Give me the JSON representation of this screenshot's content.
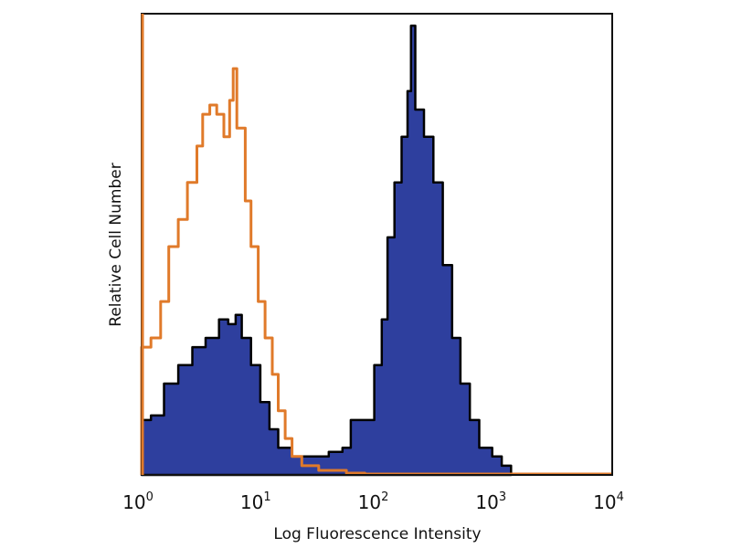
{
  "chart_data": {
    "type": "area",
    "title": "",
    "xlabel": "Log Fluorescence Intensity",
    "ylabel": "Relative Cell Number",
    "xscale": "log",
    "xlim": [
      1,
      10000
    ],
    "ylim": [
      0,
      100
    ],
    "grid": false,
    "legend": "none",
    "xticks": [
      {
        "base": "10",
        "exp": "0",
        "value": 1
      },
      {
        "base": "10",
        "exp": "1",
        "value": 10
      },
      {
        "base": "10",
        "exp": "2",
        "value": 100
      },
      {
        "base": "10",
        "exp": "3",
        "value": 1000
      },
      {
        "base": "10",
        "exp": "4",
        "value": 10000
      }
    ],
    "series": [
      {
        "style": "outline",
        "color": "#e07a2a",
        "x": [
          1,
          1.2,
          1.45,
          1.7,
          2.05,
          2.45,
          2.95,
          3.3,
          3.8,
          4.35,
          5.0,
          5.6,
          6.0,
          6.45,
          7.6,
          8.5,
          9.8,
          11.2,
          12.9,
          14.5,
          16.6,
          19,
          23,
          32,
          55,
          79
        ],
        "y": [
          27.7,
          29.7,
          37.6,
          49.5,
          55.4,
          63.4,
          71.3,
          78.2,
          80.2,
          78.2,
          73.3,
          81.2,
          88.1,
          75.2,
          59.4,
          49.5,
          37.6,
          29.7,
          21.8,
          13.9,
          7.9,
          4.0,
          2.0,
          1.0,
          0.4,
          0
        ]
      },
      {
        "style": "filled",
        "color": "#2e3f9e",
        "edge_color": "#000000",
        "x": [
          1,
          1.2,
          1.55,
          2.05,
          2.7,
          3.5,
          4.55,
          5.45,
          6.3,
          7.1,
          8.5,
          10.2,
          12.2,
          14.5,
          19,
          27,
          39,
          51,
          60,
          72,
          87,
          95,
          110,
          123,
          141,
          162,
          182,
          195,
          212,
          251,
          302,
          363,
          436,
          513,
          617,
          741,
          955,
          1150,
          1380
        ],
        "y": [
          11.9,
          12.9,
          19.8,
          23.8,
          27.7,
          29.7,
          33.7,
          32.7,
          34.7,
          29.7,
          23.8,
          15.8,
          9.9,
          5.9,
          4.0,
          4.0,
          5.0,
          5.9,
          11.9,
          11.9,
          11.9,
          23.8,
          33.7,
          51.5,
          63.4,
          73.3,
          83.2,
          97.4,
          79.2,
          73.3,
          63.4,
          45.5,
          29.7,
          19.8,
          11.9,
          5.9,
          4.0,
          2.0,
          0
        ]
      }
    ]
  }
}
